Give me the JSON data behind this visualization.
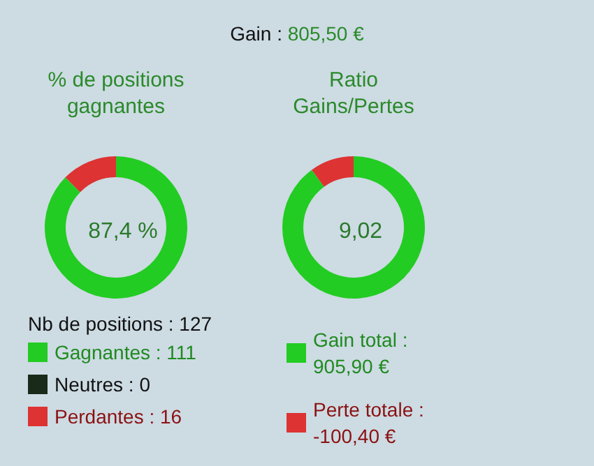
{
  "chart_data": [
    {
      "type": "other",
      "annotations": [
        "Gain : 805,50 €"
      ]
    },
    {
      "type": "donut",
      "title": "% de positions gagnantes",
      "legend_title": "Nb de positions : 127",
      "categories": [
        "Gagnantes : 111",
        "Neutres : 0",
        "Perdantes : 16"
      ],
      "values": [
        111,
        0,
        16
      ],
      "colors": [
        "#22cc22",
        "#1a2a1a",
        "#dd3333"
      ],
      "legend": "bottom",
      "annotations": [
        "87,4 %"
      ]
    },
    {
      "type": "donut",
      "title": "Ratio Gains/Pertes",
      "categories": [
        "Gain total : 905,90 €",
        "Perte totale : -100,40 €"
      ],
      "values": [
        90.02,
        9.98
      ],
      "colors": [
        "#22cc22",
        "#dd3333"
      ],
      "legend": "bottom",
      "annotations": [
        "9,02"
      ]
    }
  ]
}
